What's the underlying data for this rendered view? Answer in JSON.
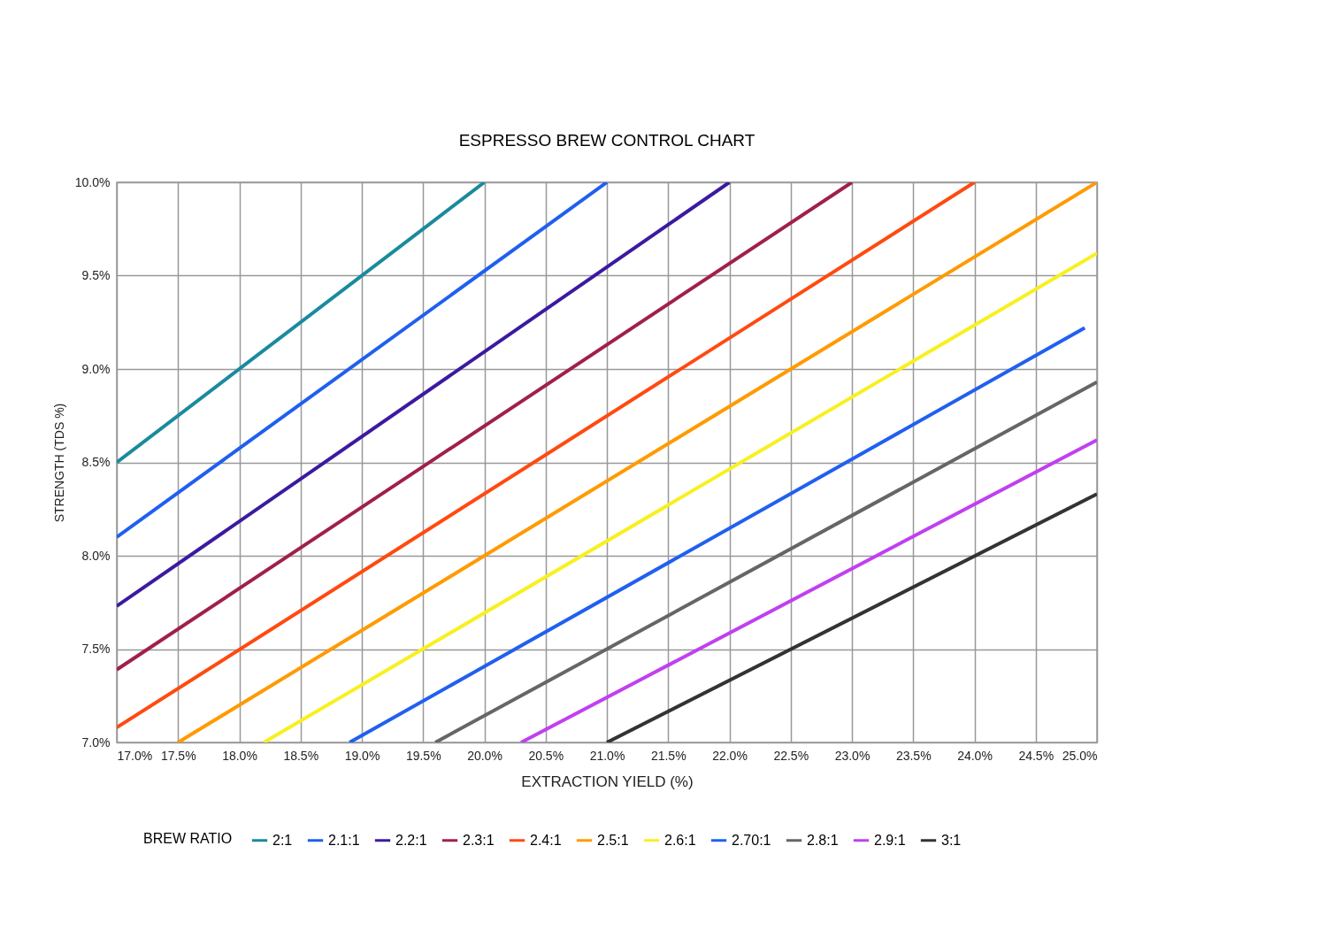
{
  "chart_data": {
    "type": "line",
    "title": "ESPRESSO BREW CONTROL CHART",
    "xlabel": "EXTRACTION YIELD (%)",
    "ylabel": "STRENGTH (TDS %)",
    "legend_title": "BREW RATIO",
    "legend": "bottom",
    "grid": true,
    "marker": "none",
    "line_style": "solid",
    "xlim": [
      17,
      25
    ],
    "ylim": [
      7,
      10
    ],
    "xticks": [
      {
        "value": 17,
        "label": "17.0%"
      },
      {
        "value": 17.5,
        "label": "17.5%"
      },
      {
        "value": 18,
        "label": "18.0%"
      },
      {
        "value": 18.5,
        "label": "18.5%"
      },
      {
        "value": 19,
        "label": "19.0%"
      },
      {
        "value": 19.5,
        "label": "19.5%"
      },
      {
        "value": 20,
        "label": "20.0%"
      },
      {
        "value": 20.5,
        "label": "20.5%"
      },
      {
        "value": 21,
        "label": "21.0%"
      },
      {
        "value": 21.5,
        "label": "21.5%"
      },
      {
        "value": 22,
        "label": "22.0%"
      },
      {
        "value": 22.5,
        "label": "22.5%"
      },
      {
        "value": 23,
        "label": "23.0%"
      },
      {
        "value": 23.5,
        "label": "23.5%"
      },
      {
        "value": 24,
        "label": "24.0%"
      },
      {
        "value": 24.5,
        "label": "24.5%"
      },
      {
        "value": 25,
        "label": "25.0%"
      }
    ],
    "yticks": [
      {
        "value": 7,
        "label": "7.0%"
      },
      {
        "value": 7.5,
        "label": "7.5%"
      },
      {
        "value": 8,
        "label": "8.0%"
      },
      {
        "value": 8.5,
        "label": "8.5%"
      },
      {
        "value": 9,
        "label": "9.0%"
      },
      {
        "value": 9.5,
        "label": "9.5%"
      },
      {
        "value": 10,
        "label": "10.0%"
      }
    ],
    "series": [
      {
        "name": "2:1",
        "color": "#1a8a9e",
        "x": [
          17,
          20
        ],
        "values": [
          8.5,
          10
        ]
      },
      {
        "name": "2.1:1",
        "color": "#1f5ff0",
        "x": [
          17,
          21
        ],
        "values": [
          8.1,
          10
        ]
      },
      {
        "name": "2.2:1",
        "color": "#3b1aa0",
        "x": [
          17,
          22
        ],
        "values": [
          7.73,
          10
        ]
      },
      {
        "name": "2.3:1",
        "color": "#a0204a",
        "x": [
          17,
          23
        ],
        "values": [
          7.39,
          10
        ]
      },
      {
        "name": "2.4:1",
        "color": "#ff4a10",
        "x": [
          17,
          24
        ],
        "values": [
          7.08,
          10
        ]
      },
      {
        "name": "2.5:1",
        "color": "#ff9a00",
        "x": [
          17.5,
          25
        ],
        "values": [
          7,
          10
        ]
      },
      {
        "name": "2.6:1",
        "color": "#f8f020",
        "x": [
          18.2,
          25
        ],
        "values": [
          7,
          9.62
        ]
      },
      {
        "name": "2.70:1",
        "color": "#2060f0",
        "x": [
          18.9,
          24.9
        ],
        "values": [
          7,
          9.22
        ]
      },
      {
        "name": "2.8:1",
        "color": "#666666",
        "x": [
          19.6,
          25
        ],
        "values": [
          7,
          8.93
        ]
      },
      {
        "name": "2.9:1",
        "color": "#c040f0",
        "x": [
          20.3,
          25
        ],
        "values": [
          7,
          8.62
        ]
      },
      {
        "name": "3:1",
        "color": "#333333",
        "x": [
          21,
          25
        ],
        "values": [
          7,
          8.33
        ]
      }
    ]
  }
}
